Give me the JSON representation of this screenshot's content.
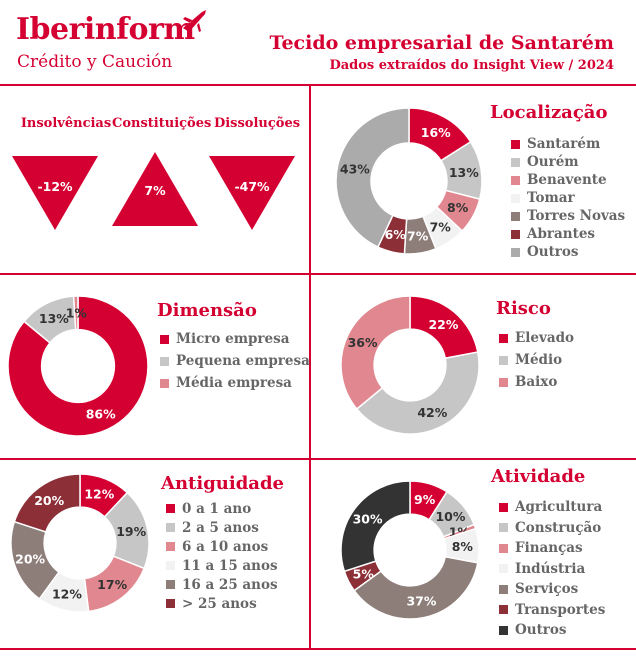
{
  "header": {
    "logo_name": "Iberinform",
    "logo_tagline": "Crédito y Caución",
    "title": "Tecido empresarial de Santarém",
    "subtitle": "Dados extraídos do Insight View / 2024"
  },
  "indicators": [
    {
      "label": "Insolvências",
      "value": "-12%",
      "direction": "down"
    },
    {
      "label": "Constituições",
      "value": "7%",
      "direction": "up"
    },
    {
      "label": "Dissoluções",
      "value": "-47%",
      "direction": "down"
    }
  ],
  "colors": {
    "brand_red": "#d50032",
    "legend_text": "#666666"
  },
  "chart_data": [
    {
      "id": "localizacao",
      "type": "pie",
      "donut": true,
      "title": "Localização",
      "categories": [
        "Santarém",
        "Ourém",
        "Benavente",
        "Tomar",
        "Torres Novas",
        "Abrantes",
        "Outros"
      ],
      "values": [
        16,
        13,
        8,
        7,
        7,
        6,
        43
      ],
      "labels": [
        "16%",
        "13%",
        "8%",
        "7%",
        "7%",
        "6%",
        "43%"
      ],
      "colors": [
        "#d50032",
        "#c6c6c6",
        "#e1878f",
        "#f2f2f2",
        "#8e7e7a",
        "#8c2f36",
        "#ababab"
      ]
    },
    {
      "id": "dimensao",
      "type": "pie",
      "donut": true,
      "title": "Dimensão",
      "categories": [
        "Micro empresa",
        "Pequena empresa",
        "Média empresa"
      ],
      "values": [
        86,
        13,
        1
      ],
      "labels": [
        "86%",
        "13%",
        "1%"
      ],
      "colors": [
        "#d50032",
        "#c6c6c6",
        "#e1878f"
      ]
    },
    {
      "id": "risco",
      "type": "pie",
      "donut": true,
      "title": "Risco",
      "categories": [
        "Elevado",
        "Médio",
        "Baixo"
      ],
      "values": [
        22,
        42,
        36
      ],
      "labels": [
        "22%",
        "42%",
        "36%"
      ],
      "colors": [
        "#d50032",
        "#c6c6c6",
        "#e1878f"
      ]
    },
    {
      "id": "antiguidade",
      "type": "pie",
      "donut": true,
      "title": "Antiguidade",
      "categories": [
        "0 a 1 ano",
        "2 a 5 anos",
        "6 a 10 anos",
        "11 a 15 anos",
        "16 a 25 anos",
        "> 25 anos"
      ],
      "values": [
        12,
        19,
        17,
        12,
        20,
        20
      ],
      "labels": [
        "12%",
        "19%",
        "17%",
        "12%",
        "20%",
        "20%"
      ],
      "colors": [
        "#d50032",
        "#c6c6c6",
        "#e1878f",
        "#f2f2f2",
        "#8e7e7a",
        "#8c2f36"
      ]
    },
    {
      "id": "atividade",
      "type": "pie",
      "donut": true,
      "title": "Atividade",
      "categories": [
        "Agricultura",
        "Construção",
        "Finanças",
        "Indústria",
        "Serviços",
        "Transportes",
        "Outros"
      ],
      "values": [
        9,
        10,
        1,
        8,
        37,
        5,
        30
      ],
      "labels": [
        "9%",
        "10%",
        "1%",
        "8%",
        "37%",
        "5%",
        "30%"
      ],
      "colors": [
        "#d50032",
        "#c6c6c6",
        "#e1878f",
        "#f2f2f2",
        "#8e7e7a",
        "#8c2f36",
        "#333333"
      ]
    }
  ]
}
